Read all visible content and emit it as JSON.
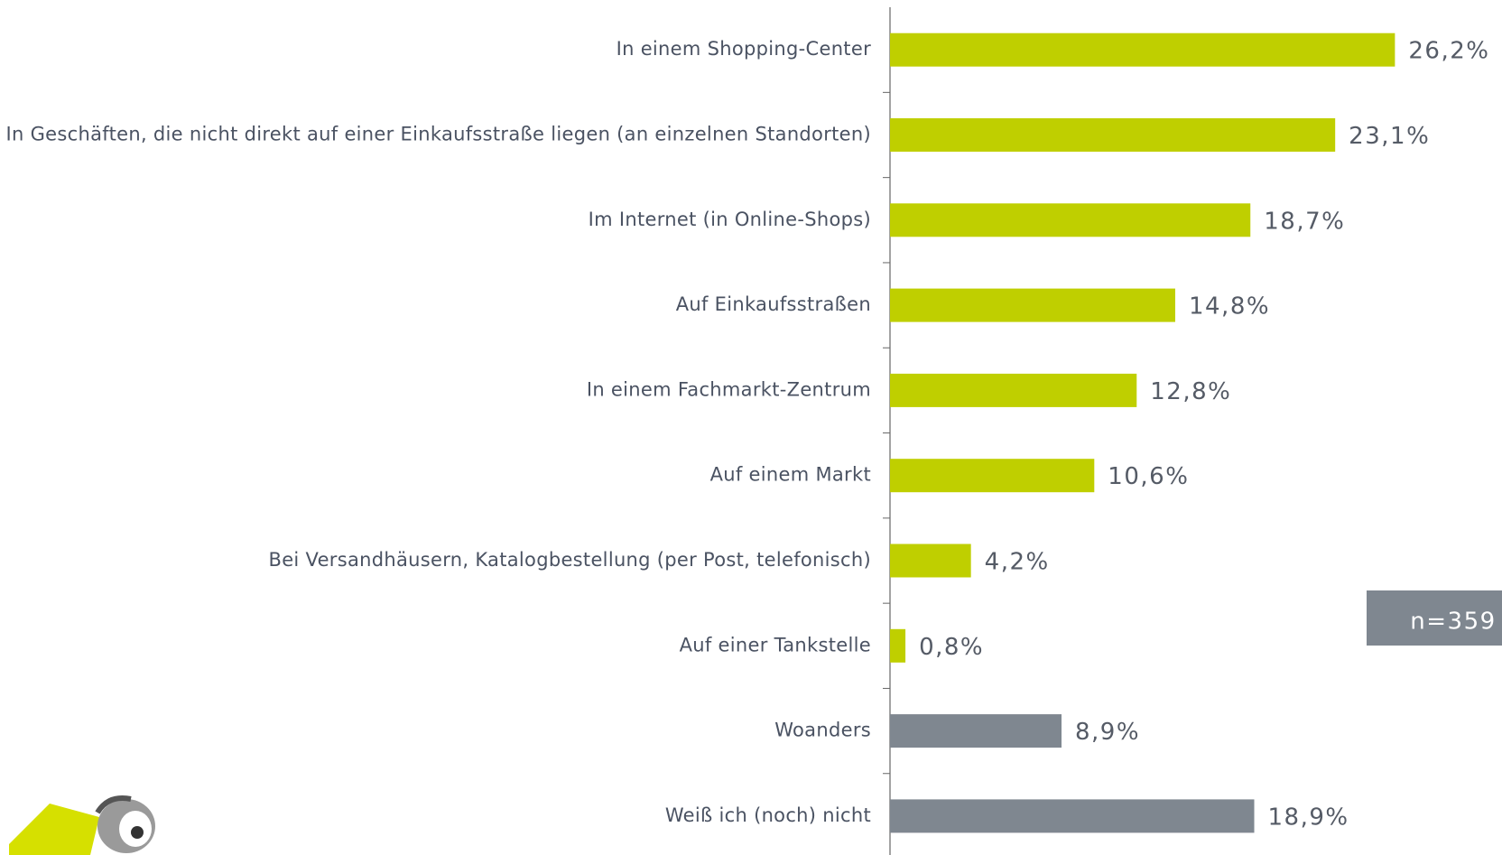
{
  "chart_data": {
    "type": "bar",
    "orientation": "horizontal",
    "categories": [
      "In einem Shopping-Center",
      "In Geschäften, die nicht direkt auf einer Einkaufsstraße liegen (an einzelnen Standorten)",
      "Im Internet (in Online-Shops)",
      "Auf Einkaufsstraßen",
      "In einem Fachmarkt-Zentrum",
      "Auf einem Markt",
      "Bei Versandhäusern, Katalogbestellung (per Post, telefonisch)",
      "Auf einer Tankstelle",
      "Woanders",
      "Weiß ich (noch) nicht"
    ],
    "values": [
      26.2,
      23.1,
      18.7,
      14.8,
      12.8,
      10.6,
      4.2,
      0.8,
      8.9,
      18.9
    ],
    "value_labels": [
      "26,2%",
      "23,1%",
      "18,7%",
      "14,8%",
      "12,8%",
      "10,6%",
      "4,2%",
      "0,8%",
      "8,9%",
      "18,9%"
    ],
    "colors": [
      "#bfcf00",
      "#bfcf00",
      "#bfcf00",
      "#bfcf00",
      "#bfcf00",
      "#bfcf00",
      "#bfcf00",
      "#bfcf00",
      "#7f8790",
      "#7f8790"
    ],
    "annotation": "n=359"
  }
}
